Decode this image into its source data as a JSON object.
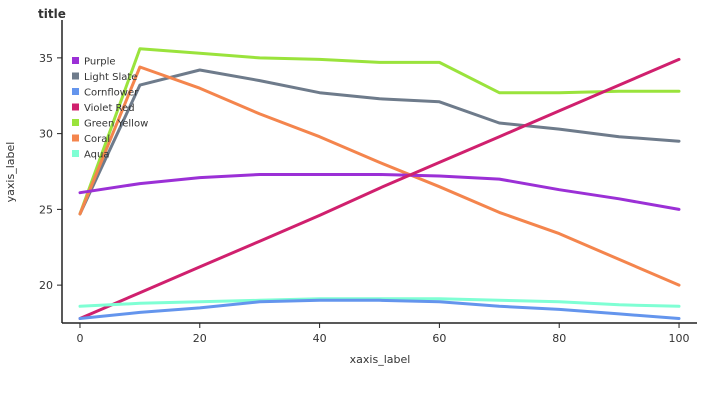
{
  "chart_data": {
    "type": "area",
    "title": "title",
    "xlabel": "xaxis_label",
    "ylabel": "yaxis_label",
    "xlim": [
      -3,
      103
    ],
    "ylim": [
      17.5,
      37.5
    ],
    "x_ticks": [
      0,
      20,
      40,
      60,
      80,
      100
    ],
    "x_tick_labels": [
      "0",
      "20",
      "40",
      "60",
      "80",
      "100"
    ],
    "y_ticks": [
      20,
      25,
      30,
      35
    ],
    "y_tick_labels": [
      "20",
      "25",
      "30",
      "35"
    ],
    "grid": false,
    "legend_position": "left",
    "series_order_back_to_front": [
      "Green Yellow",
      "Light Slate",
      "Coral",
      "Purple",
      "Violet Red",
      "Aqua",
      "Cornflower"
    ],
    "series": [
      {
        "name": "Purple",
        "color": "#9b30d6",
        "x": [
          0,
          10,
          20,
          30,
          40,
          50,
          60,
          70,
          80,
          90,
          100
        ],
        "values": [
          26.1,
          26.7,
          27.1,
          27.3,
          27.3,
          27.3,
          27.2,
          27.0,
          26.3,
          25.7,
          25.0
        ]
      },
      {
        "name": "Light Slate",
        "color": "#6e7b8b",
        "x": [
          0,
          10,
          20,
          30,
          40,
          50,
          60,
          70,
          80,
          90,
          100
        ],
        "values": [
          24.7,
          33.2,
          34.2,
          33.5,
          32.7,
          32.3,
          32.1,
          30.7,
          30.3,
          29.8,
          29.5
        ]
      },
      {
        "name": "Cornflower",
        "color": "#6495ed",
        "x": [
          0,
          10,
          20,
          30,
          40,
          50,
          60,
          70,
          80,
          90,
          100
        ],
        "values": [
          17.8,
          18.2,
          18.5,
          18.9,
          19.0,
          19.0,
          18.9,
          18.6,
          18.4,
          18.1,
          17.8
        ]
      },
      {
        "name": "Violet Red",
        "color": "#d0206e",
        "x": [
          0,
          10,
          20,
          30,
          40,
          50,
          60,
          70,
          80,
          90,
          100
        ],
        "values": [
          17.8,
          19.5,
          21.2,
          22.9,
          24.6,
          26.4,
          28.1,
          29.8,
          31.5,
          33.2,
          34.9
        ]
      },
      {
        "name": "Green Yellow",
        "color": "#9ae33c",
        "x": [
          0,
          10,
          20,
          30,
          40,
          50,
          60,
          70,
          80,
          90,
          100
        ],
        "values": [
          24.7,
          35.6,
          35.3,
          35.0,
          34.9,
          34.7,
          34.7,
          32.7,
          32.7,
          32.8,
          32.8
        ]
      },
      {
        "name": "Coral",
        "color": "#f4854d",
        "x": [
          0,
          10,
          20,
          30,
          40,
          50,
          60,
          70,
          80,
          90,
          100
        ],
        "values": [
          24.7,
          34.4,
          33.0,
          31.3,
          29.8,
          28.1,
          26.5,
          24.8,
          23.4,
          21.7,
          20.0
        ]
      },
      {
        "name": "Aqua",
        "color": "#7fffd4",
        "x": [
          0,
          10,
          20,
          30,
          40,
          50,
          60,
          70,
          80,
          90,
          100
        ],
        "values": [
          18.6,
          18.8,
          18.9,
          19.0,
          19.1,
          19.1,
          19.1,
          19.0,
          18.9,
          18.7,
          18.6
        ]
      }
    ]
  }
}
